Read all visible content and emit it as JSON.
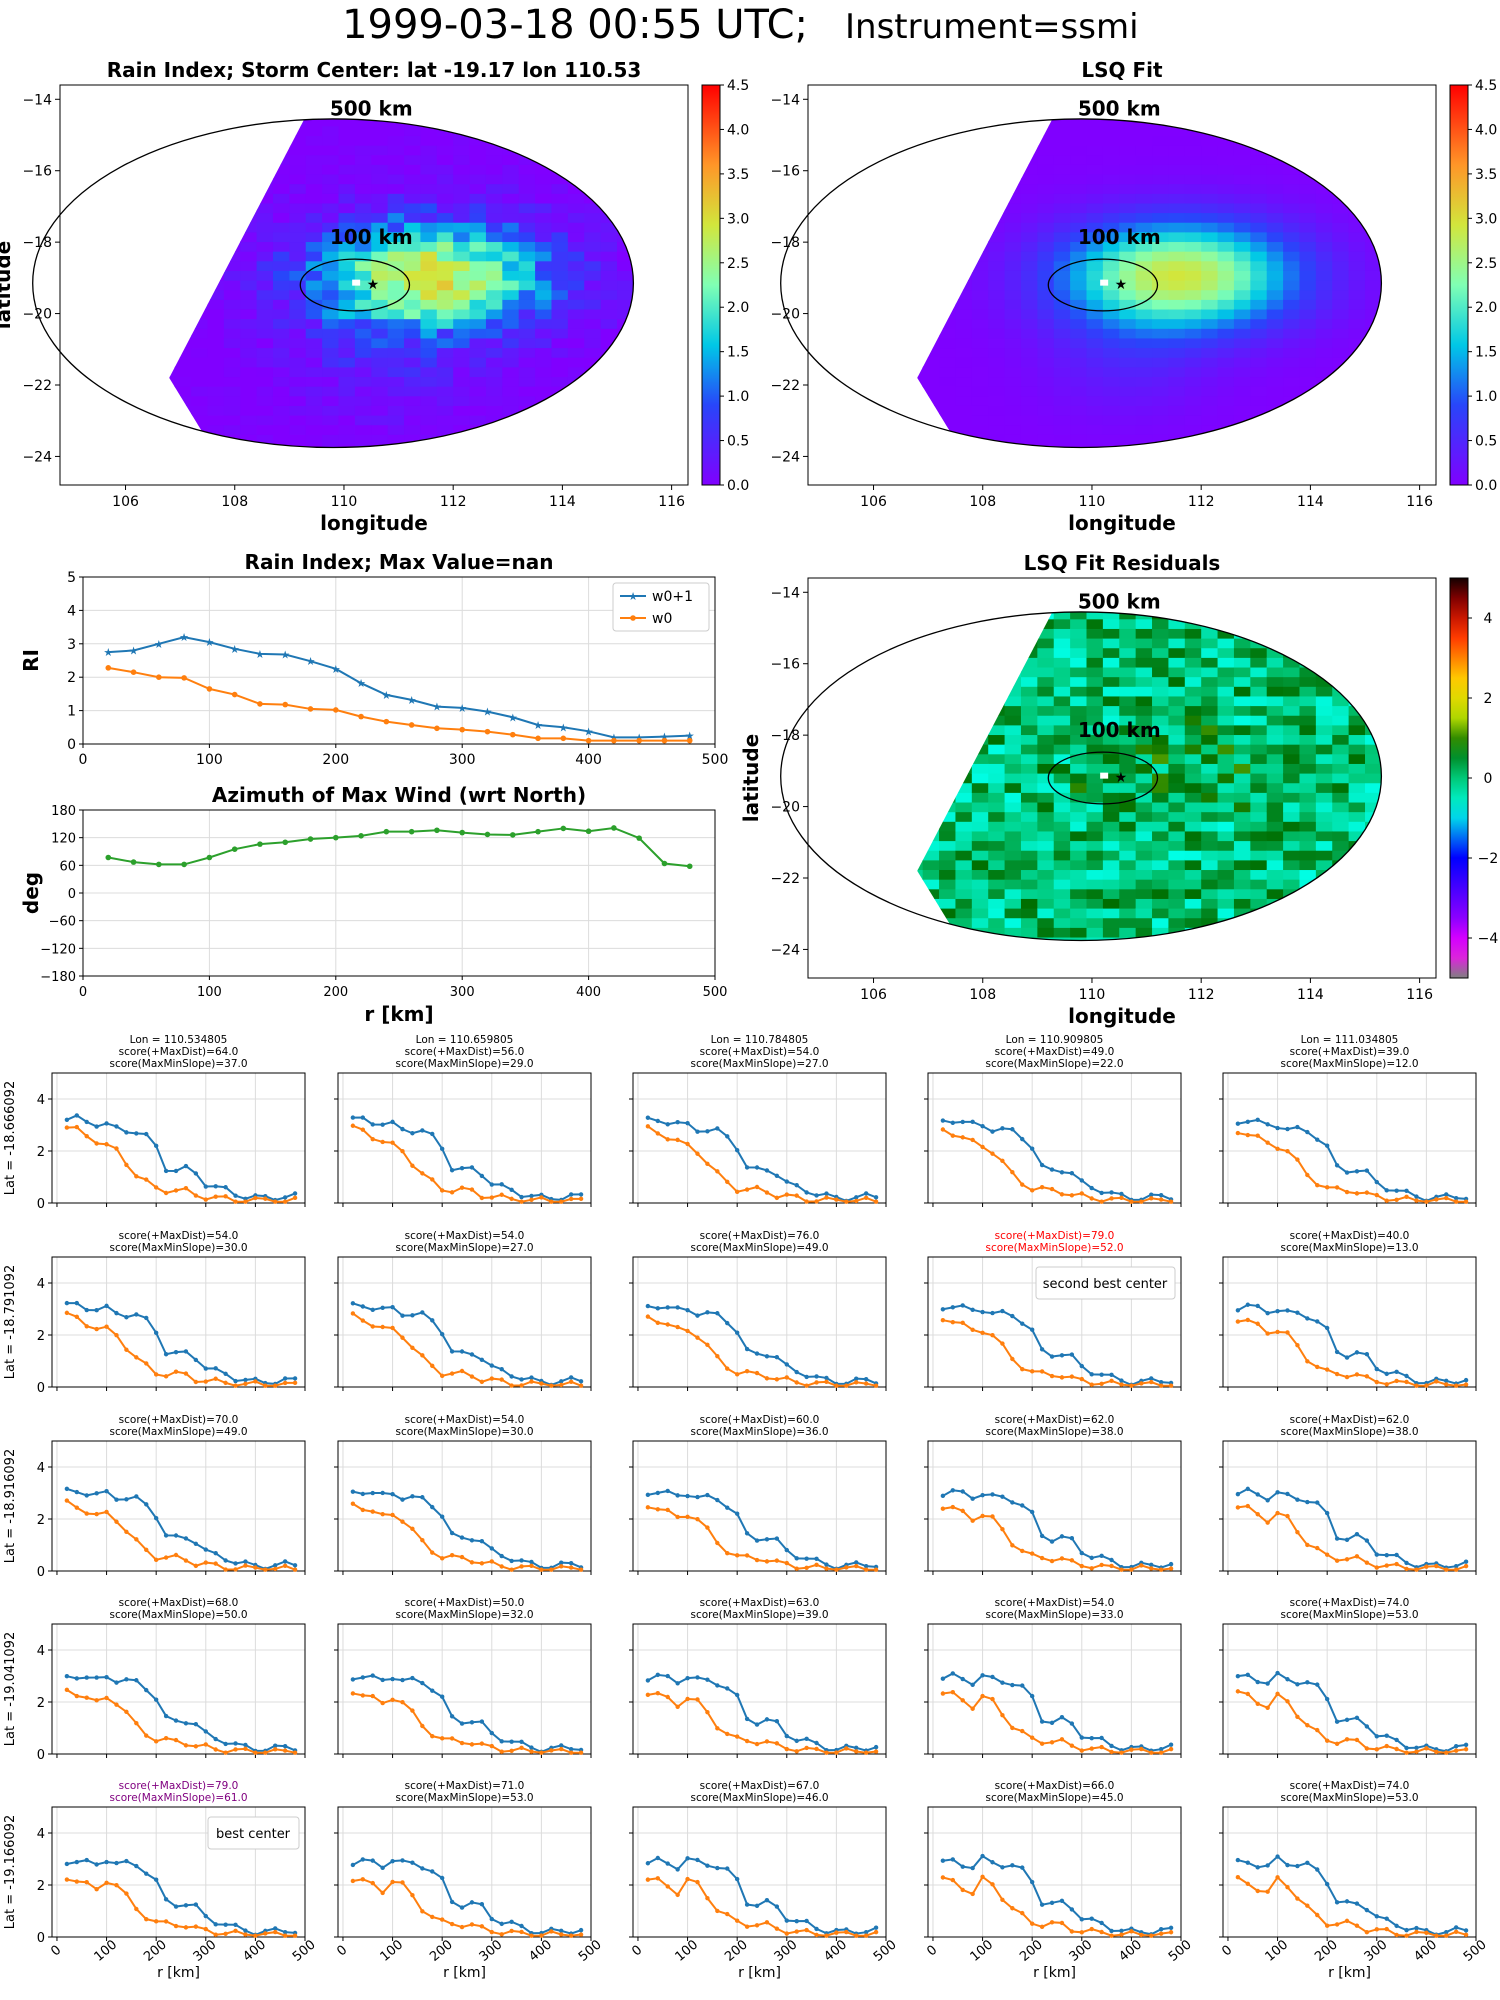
{
  "suptitle": {
    "date": "1999-03-18 00:55 UTC;",
    "instrument": "Instrument=ssmi"
  },
  "colors": {
    "w0p1": "#1f77b4",
    "w0": "#ff7f0e",
    "azimuth": "#2ca02c",
    "highlight": "#ff0000",
    "best": "#800080"
  },
  "chart_data": [
    {
      "id": "rain-index-map",
      "type": "heatmap",
      "title": "Rain Index; Storm Center: lat -19.17 lon 110.53",
      "xlabel": "longitude",
      "ylabel": "latitude",
      "xlim": [
        104.8,
        116.3
      ],
      "ylim": [
        -24.8,
        -13.6
      ],
      "xticks": [
        "106",
        "108",
        "110",
        "112",
        "114",
        "116"
      ],
      "yticks": [
        "−14",
        "−16",
        "−18",
        "−20",
        "−22",
        "−24"
      ],
      "colorbar": {
        "min": 0,
        "max": 4.5,
        "ticks": [
          "0.0",
          "0.5",
          "1.0",
          "1.5",
          "2.0",
          "2.5",
          "3.0",
          "3.5",
          "4.0",
          "4.5"
        ],
        "cmap": "rainbow"
      },
      "storm_center": [
        110.53,
        -19.17
      ],
      "rings": [
        "500 km",
        "100 km"
      ]
    },
    {
      "id": "lsq-fit-map",
      "type": "heatmap",
      "title": "LSQ Fit",
      "xlabel": "longitude",
      "ylabel": "",
      "xlim": [
        104.8,
        116.3
      ],
      "ylim": [
        -24.8,
        -13.6
      ],
      "xticks": [
        "106",
        "108",
        "110",
        "112",
        "114",
        "116"
      ],
      "yticks": [
        "−14",
        "−16",
        "−18",
        "−20",
        "−22",
        "−24"
      ],
      "colorbar": {
        "min": 0,
        "max": 4.5,
        "ticks": [
          "0.0",
          "0.5",
          "1.0",
          "1.5",
          "2.0",
          "2.5",
          "3.0",
          "3.5",
          "4.0",
          "4.5"
        ],
        "cmap": "rainbow"
      },
      "storm_center": [
        110.53,
        -19.17
      ],
      "rings": [
        "500 km",
        "100 km"
      ]
    },
    {
      "id": "rain-index-profile",
      "type": "line",
      "title": "Rain Index; Max Value=nan",
      "xlabel": "",
      "ylabel": "RI",
      "xlim": [
        0,
        500
      ],
      "ylim": [
        0,
        5
      ],
      "xticks": [
        "0",
        "100",
        "200",
        "300",
        "400",
        "500"
      ],
      "yticks": [
        "0",
        "1",
        "2",
        "3",
        "4",
        "5"
      ],
      "legend": "top-right",
      "x": [
        20,
        40,
        60,
        80,
        100,
        120,
        140,
        160,
        180,
        200,
        220,
        240,
        260,
        280,
        300,
        320,
        340,
        360,
        380,
        400,
        420,
        440,
        460,
        480
      ],
      "series": [
        {
          "name": "w0+1",
          "values": [
            2.75,
            2.8,
            3.0,
            3.2,
            3.05,
            2.85,
            2.7,
            2.68,
            2.48,
            2.25,
            1.82,
            1.47,
            1.32,
            1.12,
            1.08,
            0.97,
            0.8,
            0.57,
            0.5,
            0.38,
            0.2,
            0.2,
            0.22,
            0.25
          ]
        },
        {
          "name": "w0",
          "values": [
            2.28,
            2.15,
            2.0,
            1.98,
            1.65,
            1.48,
            1.2,
            1.18,
            1.05,
            1.02,
            0.82,
            0.67,
            0.57,
            0.47,
            0.43,
            0.37,
            0.28,
            0.17,
            0.17,
            0.1,
            0.1,
            0.1,
            0.1,
            0.1
          ]
        }
      ]
    },
    {
      "id": "azimuth-profile",
      "type": "line",
      "title": "Azimuth of Max Wind (wrt North)",
      "xlabel": "r [km]",
      "ylabel": "deg",
      "xlim": [
        0,
        500
      ],
      "ylim": [
        -180,
        180
      ],
      "xticks": [
        "0",
        "100",
        "200",
        "300",
        "400",
        "500"
      ],
      "yticks": [
        "180",
        "120",
        "60",
        "0",
        "−60",
        "−120",
        "−180"
      ],
      "x": [
        20,
        40,
        60,
        80,
        100,
        120,
        140,
        160,
        180,
        200,
        220,
        240,
        260,
        280,
        300,
        320,
        340,
        360,
        380,
        400,
        420,
        440,
        460,
        480
      ],
      "series": [
        {
          "values": [
            77,
            67,
            62,
            62,
            77,
            95,
            106,
            110,
            117,
            120,
            124,
            133,
            133,
            136,
            131,
            127,
            126,
            133,
            140,
            134,
            141,
            119,
            64,
            58
          ]
        }
      ]
    },
    {
      "id": "lsq-residuals-map",
      "type": "heatmap",
      "title": "LSQ Fit Residuals",
      "xlabel": "longitude",
      "ylabel": "latitude",
      "xlim": [
        104.8,
        116.3
      ],
      "ylim": [
        -24.8,
        -13.6
      ],
      "xticks": [
        "106",
        "108",
        "110",
        "112",
        "114",
        "116"
      ],
      "yticks": [
        "−14",
        "−16",
        "−18",
        "−20",
        "−22",
        "−24"
      ],
      "colorbar": {
        "min": -5,
        "max": 5,
        "ticks": [
          "4",
          "2",
          "0",
          "−2",
          "−4"
        ],
        "cmap": "gist_ncar"
      },
      "storm_center": [
        110.53,
        -19.17
      ],
      "rings": [
        "500 km",
        "100 km"
      ]
    },
    {
      "id": "candidate-grid",
      "type": "line",
      "xlabel": "r [km]",
      "xticks": [
        "0",
        "100",
        "200",
        "300",
        "400",
        "500"
      ],
      "yticks": [
        "0",
        "2",
        "4"
      ],
      "xlim": [
        -10,
        500
      ],
      "ylim": [
        0,
        5
      ],
      "lons": [
        "Lon = 110.534805",
        "Lon = 110.659805",
        "Lon = 110.784805",
        "Lon = 110.909805",
        "Lon = 111.034805"
      ],
      "lats": [
        "Lat = -18.666092",
        "Lat = -18.791092",
        "Lat = -18.916092",
        "Lat = -19.041092",
        "Lat = -19.166092"
      ],
      "scores": [
        [
          [
            "score(+MaxDist)=64.0",
            "score(MaxMinSlope)=37.0"
          ],
          [
            "score(+MaxDist)=56.0",
            "score(MaxMinSlope)=29.0"
          ],
          [
            "score(+MaxDist)=54.0",
            "score(MaxMinSlope)=27.0"
          ],
          [
            "score(+MaxDist)=49.0",
            "score(MaxMinSlope)=22.0"
          ],
          [
            "score(+MaxDist)=39.0",
            "score(MaxMinSlope)=12.0"
          ]
        ],
        [
          [
            "score(+MaxDist)=54.0",
            "score(MaxMinSlope)=30.0"
          ],
          [
            "score(+MaxDist)=54.0",
            "score(MaxMinSlope)=27.0"
          ],
          [
            "score(+MaxDist)=76.0",
            "score(MaxMinSlope)=49.0"
          ],
          [
            "score(+MaxDist)=79.0",
            "score(MaxMinSlope)=52.0"
          ],
          [
            "score(+MaxDist)=40.0",
            "score(MaxMinSlope)=13.0"
          ]
        ],
        [
          [
            "score(+MaxDist)=70.0",
            "score(MaxMinSlope)=49.0"
          ],
          [
            "score(+MaxDist)=54.0",
            "score(MaxMinSlope)=30.0"
          ],
          [
            "score(+MaxDist)=60.0",
            "score(MaxMinSlope)=36.0"
          ],
          [
            "score(+MaxDist)=62.0",
            "score(MaxMinSlope)=38.0"
          ],
          [
            "score(+MaxDist)=62.0",
            "score(MaxMinSlope)=38.0"
          ]
        ],
        [
          [
            "score(+MaxDist)=68.0",
            "score(MaxMinSlope)=50.0"
          ],
          [
            "score(+MaxDist)=50.0",
            "score(MaxMinSlope)=32.0"
          ],
          [
            "score(+MaxDist)=63.0",
            "score(MaxMinSlope)=39.0"
          ],
          [
            "score(+MaxDist)=54.0",
            "score(MaxMinSlope)=33.0"
          ],
          [
            "score(+MaxDist)=74.0",
            "score(MaxMinSlope)=53.0"
          ]
        ],
        [
          [
            "score(+MaxDist)=79.0",
            "score(MaxMinSlope)=61.0"
          ],
          [
            "score(+MaxDist)=71.0",
            "score(MaxMinSlope)=53.0"
          ],
          [
            "score(+MaxDist)=67.0",
            "score(MaxMinSlope)=46.0"
          ],
          [
            "score(+MaxDist)=66.0",
            "score(MaxMinSlope)=45.0"
          ],
          [
            "score(+MaxDist)=74.0",
            "score(MaxMinSlope)=53.0"
          ]
        ]
      ],
      "second_best": {
        "row": 1,
        "col": 3,
        "label": "second best center"
      },
      "best": {
        "row": 4,
        "col": 0,
        "label": "best center"
      }
    }
  ]
}
